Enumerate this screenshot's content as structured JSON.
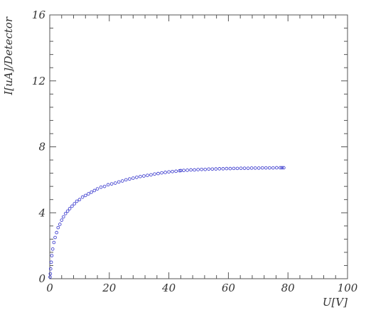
{
  "chart_data": {
    "type": "scatter",
    "xlabel": "U[V]",
    "ylabel": "I[uA]/Detector",
    "xlim": [
      0,
      100
    ],
    "ylim": [
      0,
      16
    ],
    "xticks": [
      "0",
      "20",
      "40",
      "60",
      "80",
      "100"
    ],
    "yticks": [
      "0",
      "4",
      "8",
      "12",
      "16"
    ],
    "grid": false,
    "marker_color": "#3333cc",
    "series": [
      {
        "x": [
          0.1,
          0.2,
          0.3,
          0.5,
          0.7,
          1.0,
          1.4,
          1.8,
          2.3,
          2.8,
          3.4,
          4.0,
          4.6,
          5.3,
          6.0,
          6.7,
          7.5,
          8.3,
          9.1,
          10.0,
          11.0,
          12.0,
          13.0,
          14.0,
          15.0,
          16.0,
          17.2,
          18.4,
          19.6,
          20.8,
          22.0,
          23.2,
          24.4,
          25.6,
          26.8,
          28.0,
          29.2,
          30.4,
          31.6,
          32.8,
          34.0,
          35.2,
          36.4,
          37.6,
          38.8,
          40.0,
          41.2,
          42.4,
          43.6,
          44.0,
          45.0,
          46.2,
          47.4,
          48.6,
          49.8,
          51.0,
          52.2,
          53.4,
          54.6,
          55.8,
          57.0,
          58.2,
          59.4,
          60.6,
          61.8,
          63.0,
          64.2,
          65.4,
          66.6,
          67.8,
          69.0,
          70.2,
          71.4,
          72.6,
          73.8,
          75.0,
          76.2,
          77.4,
          78.0,
          78.6
        ],
        "y": [
          0.1,
          0.3,
          0.6,
          1.0,
          1.4,
          1.8,
          2.2,
          2.5,
          2.8,
          3.1,
          3.3,
          3.55,
          3.75,
          3.95,
          4.1,
          4.25,
          4.4,
          4.55,
          4.7,
          4.8,
          4.95,
          5.05,
          5.15,
          5.25,
          5.35,
          5.45,
          5.55,
          5.6,
          5.7,
          5.75,
          5.8,
          5.87,
          5.93,
          6.0,
          6.05,
          6.1,
          6.15,
          6.2,
          6.23,
          6.27,
          6.3,
          6.35,
          6.38,
          6.42,
          6.45,
          6.48,
          6.5,
          6.52,
          6.55,
          6.56,
          6.57,
          6.58,
          6.6,
          6.6,
          6.62,
          6.63,
          6.63,
          6.65,
          6.65,
          6.66,
          6.67,
          6.67,
          6.68,
          6.68,
          6.69,
          6.69,
          6.7,
          6.7,
          6.7,
          6.71,
          6.71,
          6.71,
          6.72,
          6.72,
          6.72,
          6.72,
          6.73,
          6.73,
          6.73,
          6.73
        ]
      }
    ]
  }
}
